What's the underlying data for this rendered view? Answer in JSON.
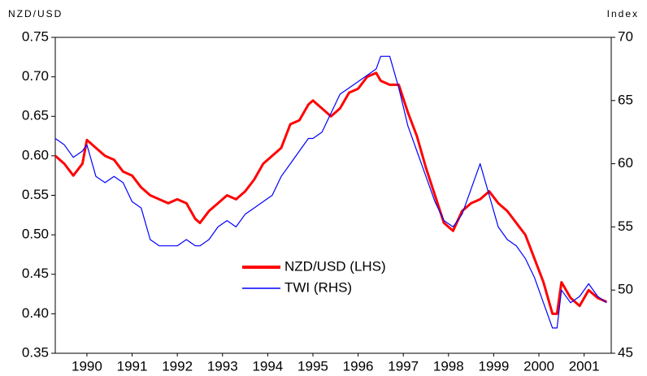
{
  "chart_data": {
    "type": "line",
    "ylabel": "NZD/USD",
    "y2label": "Index",
    "x": [
      1989.8,
      1990.0,
      1990.2,
      1990.4,
      1990.5,
      1990.7,
      1990.9,
      1991.1,
      1991.3,
      1991.5,
      1991.7,
      1991.9,
      1992.1,
      1992.3,
      1992.5,
      1992.7,
      1992.9,
      1993.0,
      1993.2,
      1993.4,
      1993.6,
      1993.8,
      1994.0,
      1994.2,
      1994.4,
      1994.6,
      1994.8,
      1995.0,
      1995.2,
      1995.4,
      1995.5,
      1995.7,
      1995.9,
      1996.1,
      1996.3,
      1996.5,
      1996.7,
      1996.9,
      1997.0,
      1997.2,
      1997.4,
      1997.6,
      1997.8,
      1998.0,
      1998.2,
      1998.4,
      1998.6,
      1998.8,
      1999.0,
      1999.2,
      1999.4,
      1999.6,
      1999.8,
      2000.0,
      2000.2,
      2000.4,
      2000.6,
      2000.8,
      2000.9,
      2001.0,
      2001.2,
      2001.4,
      2001.6,
      2001.8,
      2002.0
    ],
    "series": [
      {
        "name": "NZD/USD (LHS)",
        "color": "#ff0000",
        "axis": "y",
        "values": [
          0.6,
          0.59,
          0.575,
          0.59,
          0.62,
          0.61,
          0.6,
          0.595,
          0.58,
          0.575,
          0.56,
          0.55,
          0.545,
          0.54,
          0.545,
          0.54,
          0.52,
          0.515,
          0.53,
          0.54,
          0.55,
          0.545,
          0.555,
          0.57,
          0.59,
          0.6,
          0.61,
          0.64,
          0.645,
          0.665,
          0.67,
          0.66,
          0.65,
          0.66,
          0.68,
          0.685,
          0.7,
          0.705,
          0.695,
          0.69,
          0.69,
          0.655,
          0.625,
          0.585,
          0.55,
          0.515,
          0.505,
          0.53,
          0.54,
          0.545,
          0.555,
          0.54,
          0.53,
          0.515,
          0.5,
          0.47,
          0.44,
          0.4,
          0.4,
          0.44,
          0.42,
          0.41,
          0.43,
          0.42,
          0.415
        ]
      },
      {
        "name": "TWI (RHS)",
        "color": "#0000ff",
        "axis": "y2",
        "values": [
          62,
          61.5,
          60.5,
          61,
          61.5,
          59,
          58.5,
          59,
          58.5,
          57,
          56.5,
          54,
          53.5,
          53.5,
          53.5,
          54,
          53.5,
          53.5,
          54,
          55,
          55.5,
          55,
          56,
          56.5,
          57,
          57.5,
          59,
          60,
          61,
          62,
          62,
          62.5,
          64,
          65.5,
          66,
          66.5,
          67,
          67.5,
          68.5,
          68.5,
          66,
          63,
          61,
          59,
          57,
          55.5,
          55,
          56,
          58,
          60,
          57.5,
          55,
          54,
          53.5,
          52.5,
          51,
          49,
          47,
          47,
          50,
          49,
          49.5,
          50.5,
          49.5,
          49
        ]
      }
    ],
    "xlim": [
      1989.8,
      2002.1
    ],
    "xticks": [
      {
        "value": 1990.5,
        "label": "1990"
      },
      {
        "value": 1991.5,
        "label": "1991"
      },
      {
        "value": 1992.5,
        "label": "1992"
      },
      {
        "value": 1993.5,
        "label": "1993"
      },
      {
        "value": 1994.5,
        "label": "1994"
      },
      {
        "value": 1995.5,
        "label": "1995"
      },
      {
        "value": 1996.5,
        "label": "1996"
      },
      {
        "value": 1997.5,
        "label": "1997"
      },
      {
        "value": 1998.5,
        "label": "1998"
      },
      {
        "value": 1999.5,
        "label": "1999"
      },
      {
        "value": 2000.5,
        "label": "2000"
      },
      {
        "value": 2001.5,
        "label": "2001"
      }
    ],
    "ylim": [
      0.35,
      0.75
    ],
    "yticks": [
      0.35,
      {
        "value": 0.4,
        "label": "0.40"
      },
      0.45,
      {
        "value": 0.5,
        "label": "0.50"
      },
      0.55,
      {
        "value": 0.6,
        "label": "0.60"
      },
      0.65,
      {
        "value": 0.7,
        "label": "0.70"
      },
      0.75
    ],
    "y2lim": [
      45,
      70
    ],
    "y2ticks": [
      45,
      50,
      55,
      60,
      65,
      70
    ]
  }
}
